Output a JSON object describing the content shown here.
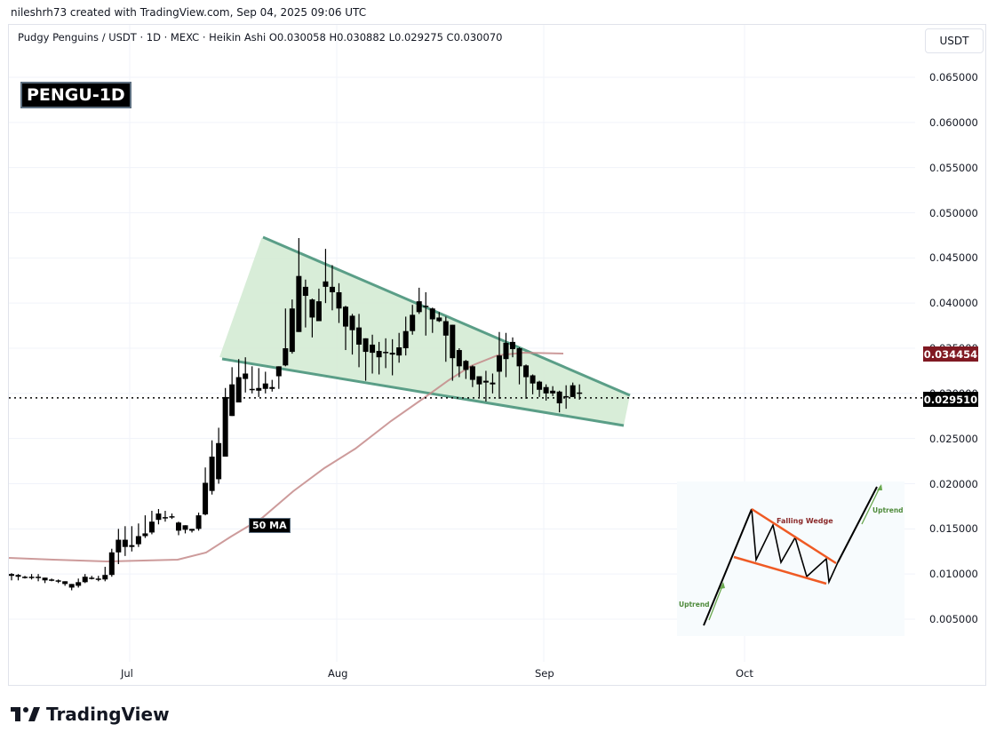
{
  "attribution": "nileshrh73 created with TradingView.com, Sep 04, 2025 09:06 UTC",
  "legend": {
    "symbol": "Pudgy Penguins / USDT",
    "interval": "1D",
    "exchange": "MEXC",
    "chart_type": "Heikin Ashi",
    "ohlc_text": "O0.030058  H0.030882  L0.029275  C0.030070",
    "full": "Pudgy Penguins / USDT · 1D · MEXC · Heikin Ashi  O0.030058  H0.030882  L0.029275  C0.030070"
  },
  "badge": "PENGU-1D",
  "currency_button": "USDT",
  "ma_label": "50 MA",
  "price_tags": {
    "ma": {
      "value": "0.034454",
      "color": "#801922"
    },
    "last": {
      "value": "0.029510",
      "color": "#000000"
    }
  },
  "inset": {
    "title": "Falling Wedge",
    "uptrend_left": "Uptrend",
    "uptrend_right": "Uptrend"
  },
  "footer": {
    "brand": "TradingView"
  },
  "colors": {
    "candle": "#000000",
    "wedge_fill": "#d4ebd4",
    "wedge_line": "#5a9e87",
    "ma_line": "#c48a8a",
    "grid": "#f0f3fa"
  },
  "chart_data": {
    "type": "candlestick",
    "title": "Pudgy Penguins / USDT · 1D · MEXC · Heikin Ashi",
    "xlabel": "",
    "ylabel": "USDT",
    "x_ticks": [
      "Jul",
      "Aug",
      "Sep",
      "Oct"
    ],
    "y_ticks": [
      "0.065000",
      "0.060000",
      "0.055000",
      "0.050000",
      "0.045000",
      "0.040000",
      "0.035000",
      "0.030000",
      "0.025000",
      "0.020000",
      "0.015000",
      "0.010000",
      "0.005000"
    ],
    "ylim": [
      0.0015,
      0.0715
    ],
    "grid": true,
    "last_price": 0.02951,
    "ma50_last": 0.034454,
    "candles_start": "2025-06-15",
    "candles": [
      {
        "o": 0.01,
        "h": 0.0101,
        "l": 0.0093,
        "c": 0.0098
      },
      {
        "o": 0.0099,
        "h": 0.01,
        "l": 0.0093,
        "c": 0.0097
      },
      {
        "o": 0.0097,
        "h": 0.0098,
        "l": 0.0095,
        "c": 0.0096
      },
      {
        "o": 0.0096,
        "h": 0.01,
        "l": 0.0094,
        "c": 0.0097
      },
      {
        "o": 0.0097,
        "h": 0.01,
        "l": 0.0092,
        "c": 0.0096
      },
      {
        "o": 0.0096,
        "h": 0.0096,
        "l": 0.009,
        "c": 0.0093
      },
      {
        "o": 0.0094,
        "h": 0.0095,
        "l": 0.0092,
        "c": 0.0094
      },
      {
        "o": 0.0093,
        "h": 0.0094,
        "l": 0.009,
        "c": 0.0092
      },
      {
        "o": 0.0092,
        "h": 0.0092,
        "l": 0.0087,
        "c": 0.0089
      },
      {
        "o": 0.0089,
        "h": 0.0089,
        "l": 0.0082,
        "c": 0.0085
      },
      {
        "o": 0.0087,
        "h": 0.0095,
        "l": 0.0085,
        "c": 0.0091
      },
      {
        "o": 0.0091,
        "h": 0.01,
        "l": 0.009,
        "c": 0.0097
      },
      {
        "o": 0.0096,
        "h": 0.0098,
        "l": 0.0094,
        "c": 0.0095
      },
      {
        "o": 0.0095,
        "h": 0.0098,
        "l": 0.0092,
        "c": 0.0094
      },
      {
        "o": 0.0094,
        "h": 0.0108,
        "l": 0.0092,
        "c": 0.0099
      },
      {
        "o": 0.0099,
        "h": 0.0128,
        "l": 0.0097,
        "c": 0.0124
      },
      {
        "o": 0.0124,
        "h": 0.015,
        "l": 0.0111,
        "c": 0.0138
      },
      {
        "o": 0.0138,
        "h": 0.0153,
        "l": 0.012,
        "c": 0.013
      },
      {
        "o": 0.013,
        "h": 0.0153,
        "l": 0.0125,
        "c": 0.0132
      },
      {
        "o": 0.0133,
        "h": 0.0156,
        "l": 0.013,
        "c": 0.0142
      },
      {
        "o": 0.0142,
        "h": 0.0165,
        "l": 0.014,
        "c": 0.0145
      },
      {
        "o": 0.0146,
        "h": 0.017,
        "l": 0.0144,
        "c": 0.0158
      },
      {
        "o": 0.016,
        "h": 0.0172,
        "l": 0.0155,
        "c": 0.0167
      },
      {
        "o": 0.0163,
        "h": 0.017,
        "l": 0.0158,
        "c": 0.0162
      },
      {
        "o": 0.0163,
        "h": 0.0167,
        "l": 0.0161,
        "c": 0.0164
      },
      {
        "o": 0.0157,
        "h": 0.0158,
        "l": 0.0143,
        "c": 0.0148
      },
      {
        "o": 0.0154,
        "h": 0.0154,
        "l": 0.0145,
        "c": 0.0149
      },
      {
        "o": 0.015,
        "h": 0.015,
        "l": 0.0146,
        "c": 0.0148
      },
      {
        "o": 0.015,
        "h": 0.0168,
        "l": 0.0148,
        "c": 0.0165
      },
      {
        "o": 0.0166,
        "h": 0.0218,
        "l": 0.0165,
        "c": 0.0201
      },
      {
        "o": 0.0192,
        "h": 0.0248,
        "l": 0.0188,
        "c": 0.023
      },
      {
        "o": 0.0205,
        "h": 0.0262,
        "l": 0.02,
        "c": 0.0245
      },
      {
        "o": 0.023,
        "h": 0.0306,
        "l": 0.023,
        "c": 0.0296
      },
      {
        "o": 0.0275,
        "h": 0.0329,
        "l": 0.0275,
        "c": 0.031
      },
      {
        "o": 0.029,
        "h": 0.0338,
        "l": 0.029,
        "c": 0.0318
      },
      {
        "o": 0.0316,
        "h": 0.034,
        "l": 0.0301,
        "c": 0.0322
      },
      {
        "o": 0.0304,
        "h": 0.033,
        "l": 0.03,
        "c": 0.0305
      },
      {
        "o": 0.0303,
        "h": 0.0328,
        "l": 0.0296,
        "c": 0.0306
      },
      {
        "o": 0.0305,
        "h": 0.0324,
        "l": 0.03,
        "c": 0.0311
      },
      {
        "o": 0.0305,
        "h": 0.0315,
        "l": 0.0302,
        "c": 0.0307
      },
      {
        "o": 0.0319,
        "h": 0.033,
        "l": 0.0305,
        "c": 0.033
      },
      {
        "o": 0.0331,
        "h": 0.0394,
        "l": 0.033,
        "c": 0.035
      },
      {
        "o": 0.0346,
        "h": 0.0404,
        "l": 0.0344,
        "c": 0.0394
      },
      {
        "o": 0.0368,
        "h": 0.0472,
        "l": 0.0368,
        "c": 0.043
      },
      {
        "o": 0.0418,
        "h": 0.0426,
        "l": 0.0373,
        "c": 0.0408
      },
      {
        "o": 0.0404,
        "h": 0.0405,
        "l": 0.0362,
        "c": 0.0384
      },
      {
        "o": 0.038,
        "h": 0.0416,
        "l": 0.038,
        "c": 0.0402
      },
      {
        "o": 0.0424,
        "h": 0.046,
        "l": 0.04,
        "c": 0.0418
      },
      {
        "o": 0.0418,
        "h": 0.0442,
        "l": 0.0392,
        "c": 0.0412
      },
      {
        "o": 0.0412,
        "h": 0.0422,
        "l": 0.0378,
        "c": 0.0394
      },
      {
        "o": 0.0396,
        "h": 0.0397,
        "l": 0.0348,
        "c": 0.0374
      },
      {
        "o": 0.0386,
        "h": 0.0388,
        "l": 0.0343,
        "c": 0.037
      },
      {
        "o": 0.0373,
        "h": 0.0388,
        "l": 0.0329,
        "c": 0.0354
      },
      {
        "o": 0.0361,
        "h": 0.0361,
        "l": 0.0314,
        "c": 0.0346
      },
      {
        "o": 0.0354,
        "h": 0.0365,
        "l": 0.0322,
        "c": 0.0345
      },
      {
        "o": 0.0347,
        "h": 0.0357,
        "l": 0.0321,
        "c": 0.034
      },
      {
        "o": 0.0345,
        "h": 0.0361,
        "l": 0.0328,
        "c": 0.0346
      },
      {
        "o": 0.0345,
        "h": 0.036,
        "l": 0.032,
        "c": 0.0343
      },
      {
        "o": 0.0342,
        "h": 0.0367,
        "l": 0.0334,
        "c": 0.0351
      },
      {
        "o": 0.035,
        "h": 0.0385,
        "l": 0.0342,
        "c": 0.0369
      },
      {
        "o": 0.0369,
        "h": 0.0398,
        "l": 0.0365,
        "c": 0.0387
      },
      {
        "o": 0.039,
        "h": 0.0417,
        "l": 0.0388,
        "c": 0.0402
      },
      {
        "o": 0.0397,
        "h": 0.0412,
        "l": 0.0364,
        "c": 0.0397
      },
      {
        "o": 0.0394,
        "h": 0.0395,
        "l": 0.0367,
        "c": 0.0382
      },
      {
        "o": 0.0384,
        "h": 0.039,
        "l": 0.0379,
        "c": 0.038
      },
      {
        "o": 0.038,
        "h": 0.0385,
        "l": 0.0335,
        "c": 0.0364
      },
      {
        "o": 0.0376,
        "h": 0.0376,
        "l": 0.0314,
        "c": 0.0339
      },
      {
        "o": 0.0348,
        "h": 0.035,
        "l": 0.0318,
        "c": 0.033
      },
      {
        "o": 0.0336,
        "h": 0.0337,
        "l": 0.0316,
        "c": 0.0326
      },
      {
        "o": 0.033,
        "h": 0.0331,
        "l": 0.0307,
        "c": 0.0315
      },
      {
        "o": 0.0319,
        "h": 0.0319,
        "l": 0.0296,
        "c": 0.031
      },
      {
        "o": 0.0314,
        "h": 0.0325,
        "l": 0.0291,
        "c": 0.0312
      },
      {
        "o": 0.031,
        "h": 0.0322,
        "l": 0.03,
        "c": 0.0312
      },
      {
        "o": 0.0324,
        "h": 0.0368,
        "l": 0.0294,
        "c": 0.0342
      },
      {
        "o": 0.0338,
        "h": 0.0367,
        "l": 0.0318,
        "c": 0.0356
      },
      {
        "o": 0.0357,
        "h": 0.0362,
        "l": 0.034,
        "c": 0.0349
      },
      {
        "o": 0.035,
        "h": 0.0351,
        "l": 0.031,
        "c": 0.033
      },
      {
        "o": 0.0331,
        "h": 0.0332,
        "l": 0.0294,
        "c": 0.0318
      },
      {
        "o": 0.032,
        "h": 0.0321,
        "l": 0.0299,
        "c": 0.0311
      },
      {
        "o": 0.0313,
        "h": 0.0314,
        "l": 0.0296,
        "c": 0.0304
      },
      {
        "o": 0.0307,
        "h": 0.031,
        "l": 0.0292,
        "c": 0.03
      },
      {
        "o": 0.0303,
        "h": 0.0308,
        "l": 0.0297,
        "c": 0.03
      },
      {
        "o": 0.0302,
        "h": 0.0303,
        "l": 0.0279,
        "c": 0.0289
      },
      {
        "o": 0.0297,
        "h": 0.0309,
        "l": 0.0283,
        "c": 0.0296
      },
      {
        "o": 0.0296,
        "h": 0.0312,
        "l": 0.0296,
        "c": 0.0309
      },
      {
        "o": 0.0301,
        "h": 0.031,
        "l": 0.0293,
        "c": 0.0301
      }
    ],
    "ma50": [
      [
        0,
        0.0118
      ],
      [
        10,
        0.0117
      ],
      [
        15,
        0.0115
      ],
      [
        20,
        0.0114
      ],
      [
        27,
        0.0116
      ],
      [
        30,
        0.012
      ],
      [
        33,
        0.0132
      ],
      [
        36,
        0.015
      ],
      [
        40,
        0.0168
      ],
      [
        44,
        0.0192
      ],
      [
        48,
        0.0218
      ],
      [
        52,
        0.0245
      ],
      [
        56,
        0.0266
      ],
      [
        60,
        0.0288
      ],
      [
        64,
        0.0305
      ],
      [
        67,
        0.0315
      ],
      [
        70,
        0.0323
      ],
      [
        73,
        0.0334
      ],
      [
        75,
        0.0341
      ],
      [
        78,
        0.0346
      ],
      [
        82,
        0.0346
      ],
      [
        86,
        0.0345
      ]
    ],
    "wedge": {
      "upper_line": [
        [
          0.0472,
          "2025-07-21"
        ],
        [
          0.0296,
          "2025-09-16"
        ]
      ],
      "lower_line": [
        [
          0.0332,
          "2025-07-14"
        ],
        [
          0.0265,
          "2025-09-15"
        ]
      ],
      "fill": "#d4ebd4",
      "line_color": "#5a9e87"
    }
  }
}
